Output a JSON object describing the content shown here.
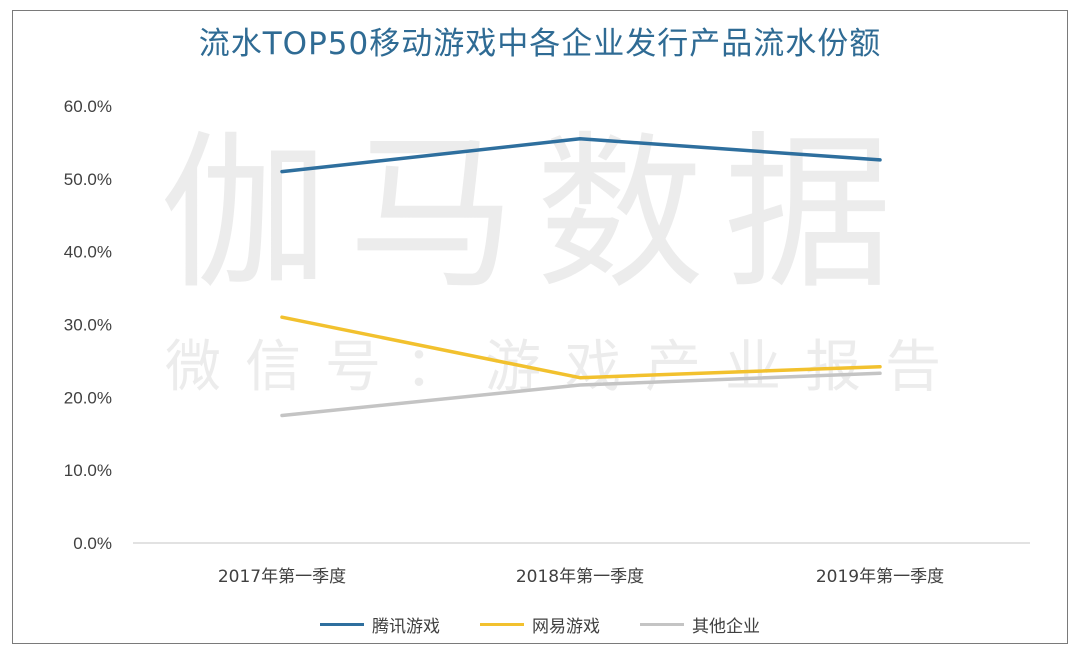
{
  "chart_data": {
    "type": "line",
    "title": "流水TOP50移动游戏中各企业发行产品流水份额",
    "categories": [
      "2017年第一季度",
      "2018年第一季度",
      "2019年第一季度"
    ],
    "series": [
      {
        "name": "腾讯游戏",
        "values": [
          51.0,
          55.5,
          52.6
        ],
        "color": "#2e6f9e"
      },
      {
        "name": "网易游戏",
        "values": [
          31.0,
          22.7,
          24.2
        ],
        "color": "#f2c12e"
      },
      {
        "name": "其他企业",
        "values": [
          17.5,
          21.7,
          23.3
        ],
        "color": "#c4c4c4"
      }
    ],
    "ylim": [
      0,
      60
    ],
    "yticks": [
      0,
      10,
      20,
      30,
      40,
      50,
      60
    ],
    "ytick_labels": [
      "0.0%",
      "10.0%",
      "20.0%",
      "30.0%",
      "40.0%",
      "50.0%",
      "60.0%"
    ],
    "grid": false,
    "legend_position": "bottom"
  },
  "watermark": {
    "main": "伽马数据",
    "sub": "微信号：游戏产业报告"
  }
}
